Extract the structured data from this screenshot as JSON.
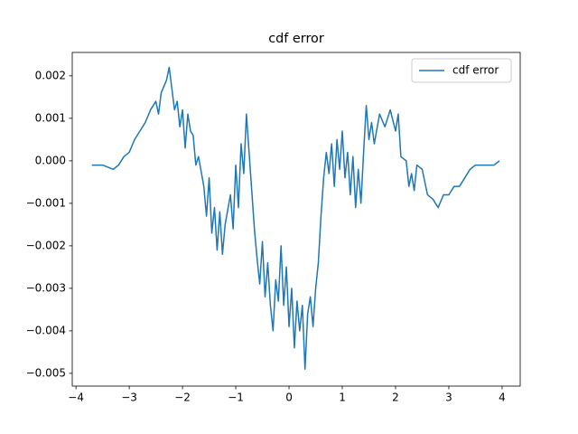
{
  "chart_data": {
    "type": "line",
    "title": "cdf error",
    "x": [
      -3.7,
      -3.5,
      -3.3,
      -3.2,
      -3.1,
      -3.0,
      -2.9,
      -2.7,
      -2.6,
      -2.5,
      -2.45,
      -2.4,
      -2.3,
      -2.25,
      -2.2,
      -2.15,
      -2.1,
      -2.05,
      -2.0,
      -1.95,
      -1.9,
      -1.85,
      -1.8,
      -1.75,
      -1.7,
      -1.6,
      -1.55,
      -1.5,
      -1.45,
      -1.4,
      -1.35,
      -1.3,
      -1.25,
      -1.2,
      -1.1,
      -1.05,
      -1.0,
      -0.95,
      -0.9,
      -0.85,
      -0.8,
      -0.75,
      -0.7,
      -0.65,
      -0.6,
      -0.55,
      -0.5,
      -0.45,
      -0.4,
      -0.35,
      -0.3,
      -0.25,
      -0.2,
      -0.15,
      -0.1,
      -0.05,
      0.0,
      0.05,
      0.1,
      0.15,
      0.2,
      0.25,
      0.3,
      0.35,
      0.4,
      0.45,
      0.5,
      0.55,
      0.6,
      0.65,
      0.7,
      0.75,
      0.8,
      0.85,
      0.9,
      0.95,
      1.0,
      1.05,
      1.1,
      1.15,
      1.2,
      1.25,
      1.3,
      1.35,
      1.4,
      1.45,
      1.5,
      1.55,
      1.6,
      1.7,
      1.8,
      1.9,
      2.0,
      2.05,
      2.1,
      2.2,
      2.25,
      2.3,
      2.35,
      2.4,
      2.5,
      2.6,
      2.7,
      2.8,
      2.9,
      3.0,
      3.1,
      3.2,
      3.3,
      3.4,
      3.5,
      3.7,
      3.85,
      3.95
    ],
    "series": [
      {
        "name": "cdf error",
        "color": "#1f77b4",
        "values": [
          -0.0001,
          -0.0001,
          -0.0002,
          -0.0001,
          0.0001,
          0.0002,
          0.0005,
          0.0009,
          0.0012,
          0.0014,
          0.0011,
          0.0016,
          0.0019,
          0.0022,
          0.0017,
          0.0012,
          0.0014,
          0.0008,
          0.0012,
          0.0003,
          0.0011,
          0.0007,
          0.0006,
          -0.0001,
          0.0001,
          -0.0006,
          -0.0013,
          -0.0004,
          -0.0017,
          -0.0011,
          -0.0021,
          -0.0012,
          -0.0022,
          -0.0015,
          -0.0008,
          -0.0016,
          -0.0001,
          -0.0011,
          0.0004,
          -0.0003,
          0.0011,
          0.0002,
          -0.0007,
          -0.0016,
          -0.0023,
          -0.0029,
          -0.0019,
          -0.0032,
          -0.0024,
          -0.0034,
          -0.004,
          -0.0028,
          -0.0033,
          -0.002,
          -0.0034,
          -0.0025,
          -0.0039,
          -0.003,
          -0.0044,
          -0.0033,
          -0.004,
          -0.0034,
          -0.0049,
          -0.0036,
          -0.0032,
          -0.0039,
          -0.003,
          -0.0024,
          -0.0013,
          -0.0004,
          0.0002,
          -0.0003,
          0.0004,
          -0.0006,
          0.0005,
          -0.0002,
          0.0007,
          -0.0004,
          0.0002,
          -0.0008,
          0.0001,
          -0.0011,
          -0.0002,
          -0.001,
          0.0002,
          0.0013,
          0.0005,
          0.0009,
          0.0004,
          0.0011,
          0.0008,
          0.0012,
          0.0007,
          0.0011,
          0.0001,
          0.0,
          -0.0006,
          -0.0003,
          -0.0007,
          -0.0001,
          -0.0002,
          -0.0008,
          -0.0009,
          -0.0011,
          -0.0008,
          -0.0008,
          -0.0006,
          -0.0006,
          -0.0004,
          -0.0002,
          -0.0001,
          -0.0001,
          -0.0001,
          0.0
        ]
      }
    ],
    "xlim": [
      -4.07,
      4.34
    ],
    "xticks": [
      {
        "value": -4,
        "label": "−4"
      },
      {
        "value": -3,
        "label": "−3"
      },
      {
        "value": -2,
        "label": "−2"
      },
      {
        "value": -1,
        "label": "−1"
      },
      0,
      1,
      2,
      3,
      4
    ],
    "ylim": [
      -0.0053,
      0.00255
    ],
    "yticks": [
      {
        "value": -0.005,
        "label": "−0.005"
      },
      {
        "value": -0.004,
        "label": "−0.004"
      },
      {
        "value": -0.003,
        "label": "−0.003"
      },
      {
        "value": -0.002,
        "label": "−0.002"
      },
      {
        "value": -0.001,
        "label": "−0.001"
      },
      {
        "value": 0,
        "label": "0.000"
      },
      0.001,
      0.002
    ],
    "legend": "upper right"
  }
}
